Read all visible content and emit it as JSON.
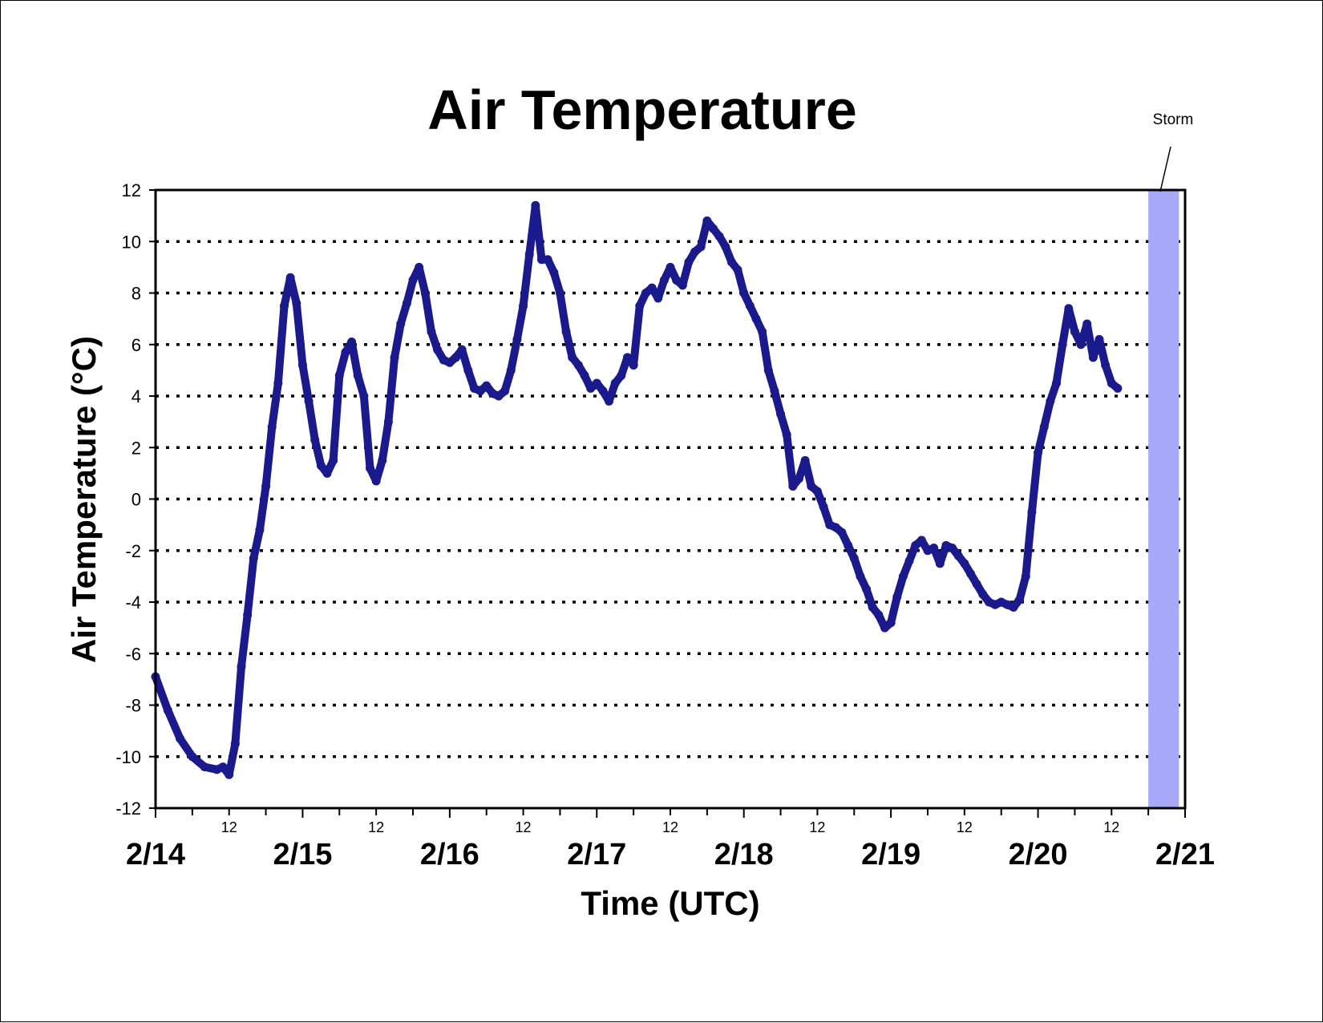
{
  "chart_data": {
    "type": "scatter",
    "title": "Air Temperature",
    "xlabel": "Time (UTC)",
    "ylabel": "Air Temperature (°C)",
    "ylim": [
      -12,
      12
    ],
    "yticks": [
      -12,
      -10,
      -8,
      -6,
      -4,
      -2,
      0,
      2,
      4,
      6,
      8,
      10,
      12
    ],
    "xlim": [
      "2/14",
      "2/21"
    ],
    "x_major_ticks": [
      "2/14",
      "2/15",
      "2/16",
      "2/17",
      "2/18",
      "2/19",
      "2/20",
      "2/21"
    ],
    "x_minor_label": "12",
    "grid": "horizontal dotted",
    "series_color": "#1a1a8c",
    "annotation": {
      "text": "Storm",
      "start": "2/20 18:00",
      "end": "2/20 23:00",
      "color": "#a8a8f8"
    },
    "series": [
      {
        "points": [
          [
            "2/14 00:00",
            -6.9
          ],
          [
            "2/14 02:00",
            -8.2
          ],
          [
            "2/14 04:00",
            -9.3
          ],
          [
            "2/14 06:00",
            -10.0
          ],
          [
            "2/14 08:00",
            -10.4
          ],
          [
            "2/14 10:00",
            -10.5
          ],
          [
            "2/14 11:00",
            -10.4
          ],
          [
            "2/14 12:00",
            -10.7
          ],
          [
            "2/14 13:00",
            -9.5
          ],
          [
            "2/14 14:00",
            -6.5
          ],
          [
            "2/14 15:00",
            -4.5
          ],
          [
            "2/14 16:00",
            -2.3
          ],
          [
            "2/14 17:00",
            -1.2
          ],
          [
            "2/14 18:00",
            0.5
          ],
          [
            "2/14 19:00",
            2.8
          ],
          [
            "2/14 20:00",
            4.5
          ],
          [
            "2/14 21:00",
            7.5
          ],
          [
            "2/14 22:00",
            8.6
          ],
          [
            "2/14 23:00",
            7.6
          ],
          [
            "2/15 00:00",
            5.2
          ],
          [
            "2/15 01:00",
            3.8
          ],
          [
            "2/15 02:00",
            2.3
          ],
          [
            "2/15 03:00",
            1.3
          ],
          [
            "2/15 04:00",
            1.0
          ],
          [
            "2/15 05:00",
            1.5
          ],
          [
            "2/15 06:00",
            4.8
          ],
          [
            "2/15 07:00",
            5.7
          ],
          [
            "2/15 08:00",
            6.1
          ],
          [
            "2/15 09:00",
            4.8
          ],
          [
            "2/15 10:00",
            4.0
          ],
          [
            "2/15 11:00",
            1.2
          ],
          [
            "2/15 12:00",
            0.7
          ],
          [
            "2/15 13:00",
            1.5
          ],
          [
            "2/15 14:00",
            3.0
          ],
          [
            "2/15 15:00",
            5.5
          ],
          [
            "2/15 16:00",
            6.8
          ],
          [
            "2/15 17:00",
            7.6
          ],
          [
            "2/15 18:00",
            8.5
          ],
          [
            "2/15 19:00",
            9.0
          ],
          [
            "2/15 20:00",
            8.0
          ],
          [
            "2/15 21:00",
            6.5
          ],
          [
            "2/15 22:00",
            5.8
          ],
          [
            "2/15 23:00",
            5.4
          ],
          [
            "2/16 00:00",
            5.3
          ],
          [
            "2/16 01:00",
            5.5
          ],
          [
            "2/16 02:00",
            5.8
          ],
          [
            "2/16 03:00",
            5.0
          ],
          [
            "2/16 04:00",
            4.3
          ],
          [
            "2/16 05:00",
            4.2
          ],
          [
            "2/16 06:00",
            4.4
          ],
          [
            "2/16 07:00",
            4.1
          ],
          [
            "2/16 08:00",
            4.0
          ],
          [
            "2/16 09:00",
            4.2
          ],
          [
            "2/16 10:00",
            5.0
          ],
          [
            "2/16 11:00",
            6.2
          ],
          [
            "2/16 12:00",
            7.5
          ],
          [
            "2/16 13:00",
            9.5
          ],
          [
            "2/16 14:00",
            11.4
          ],
          [
            "2/16 15:00",
            9.3
          ],
          [
            "2/16 16:00",
            9.3
          ],
          [
            "2/16 17:00",
            8.8
          ],
          [
            "2/16 18:00",
            8.0
          ],
          [
            "2/16 19:00",
            6.5
          ],
          [
            "2/16 20:00",
            5.5
          ],
          [
            "2/16 21:00",
            5.2
          ],
          [
            "2/16 22:00",
            4.8
          ],
          [
            "2/16 23:00",
            4.3
          ],
          [
            "2/17 00:00",
            4.5
          ],
          [
            "2/17 01:00",
            4.2
          ],
          [
            "2/17 02:00",
            3.8
          ],
          [
            "2/17 03:00",
            4.5
          ],
          [
            "2/17 04:00",
            4.8
          ],
          [
            "2/17 05:00",
            5.5
          ],
          [
            "2/17 06:00",
            5.2
          ],
          [
            "2/17 07:00",
            7.5
          ],
          [
            "2/17 08:00",
            8.0
          ],
          [
            "2/17 09:00",
            8.2
          ],
          [
            "2/17 10:00",
            7.8
          ],
          [
            "2/17 11:00",
            8.5
          ],
          [
            "2/17 12:00",
            9.0
          ],
          [
            "2/17 13:00",
            8.5
          ],
          [
            "2/17 14:00",
            8.3
          ],
          [
            "2/17 15:00",
            9.2
          ],
          [
            "2/17 16:00",
            9.6
          ],
          [
            "2/17 17:00",
            9.8
          ],
          [
            "2/17 18:00",
            10.8
          ],
          [
            "2/17 19:00",
            10.5
          ],
          [
            "2/17 20:00",
            10.2
          ],
          [
            "2/17 21:00",
            9.8
          ],
          [
            "2/17 22:00",
            9.2
          ],
          [
            "2/17 23:00",
            8.9
          ],
          [
            "2/18 00:00",
            8.0
          ],
          [
            "2/18 01:00",
            7.5
          ],
          [
            "2/18 02:00",
            7.0
          ],
          [
            "2/18 03:00",
            6.5
          ],
          [
            "2/18 04:00",
            5.0
          ],
          [
            "2/18 05:00",
            4.2
          ],
          [
            "2/18 06:00",
            3.3
          ],
          [
            "2/18 07:00",
            2.5
          ],
          [
            "2/18 08:00",
            0.5
          ],
          [
            "2/18 09:00",
            0.8
          ],
          [
            "2/18 10:00",
            1.5
          ],
          [
            "2/18 11:00",
            0.5
          ],
          [
            "2/18 12:00",
            0.3
          ],
          [
            "2/18 13:00",
            -0.3
          ],
          [
            "2/18 14:00",
            -1.0
          ],
          [
            "2/18 15:00",
            -1.1
          ],
          [
            "2/18 16:00",
            -1.3
          ],
          [
            "2/18 17:00",
            -1.8
          ],
          [
            "2/18 18:00",
            -2.3
          ],
          [
            "2/18 19:00",
            -3.0
          ],
          [
            "2/18 20:00",
            -3.5
          ],
          [
            "2/18 21:00",
            -4.2
          ],
          [
            "2/18 22:00",
            -4.5
          ],
          [
            "2/18 23:00",
            -5.0
          ],
          [
            "2/19 00:00",
            -4.8
          ],
          [
            "2/19 01:00",
            -3.8
          ],
          [
            "2/19 02:00",
            -3.0
          ],
          [
            "2/19 03:00",
            -2.4
          ],
          [
            "2/19 04:00",
            -1.8
          ],
          [
            "2/19 05:00",
            -1.6
          ],
          [
            "2/19 06:00",
            -2.0
          ],
          [
            "2/19 07:00",
            -1.9
          ],
          [
            "2/19 08:00",
            -2.5
          ],
          [
            "2/19 09:00",
            -1.8
          ],
          [
            "2/19 10:00",
            -1.9
          ],
          [
            "2/19 11:00",
            -2.2
          ],
          [
            "2/19 12:00",
            -2.5
          ],
          [
            "2/19 13:00",
            -2.9
          ],
          [
            "2/19 14:00",
            -3.3
          ],
          [
            "2/19 15:00",
            -3.7
          ],
          [
            "2/19 16:00",
            -4.0
          ],
          [
            "2/19 17:00",
            -4.1
          ],
          [
            "2/19 18:00",
            -4.0
          ],
          [
            "2/19 19:00",
            -4.1
          ],
          [
            "2/19 20:00",
            -4.2
          ],
          [
            "2/19 21:00",
            -3.9
          ],
          [
            "2/19 22:00",
            -3.0
          ],
          [
            "2/19 23:00",
            -0.5
          ],
          [
            "2/20 00:00",
            1.8
          ],
          [
            "2/20 01:00",
            2.8
          ],
          [
            "2/20 02:00",
            3.8
          ],
          [
            "2/20 03:00",
            4.5
          ],
          [
            "2/20 04:00",
            6.0
          ],
          [
            "2/20 05:00",
            7.4
          ],
          [
            "2/20 06:00",
            6.5
          ],
          [
            "2/20 07:00",
            6.0
          ],
          [
            "2/20 08:00",
            6.8
          ],
          [
            "2/20 09:00",
            5.5
          ],
          [
            "2/20 10:00",
            6.2
          ],
          [
            "2/20 11:00",
            5.2
          ],
          [
            "2/20 12:00",
            4.5
          ],
          [
            "2/20 13:00",
            4.3
          ]
        ]
      }
    ]
  }
}
